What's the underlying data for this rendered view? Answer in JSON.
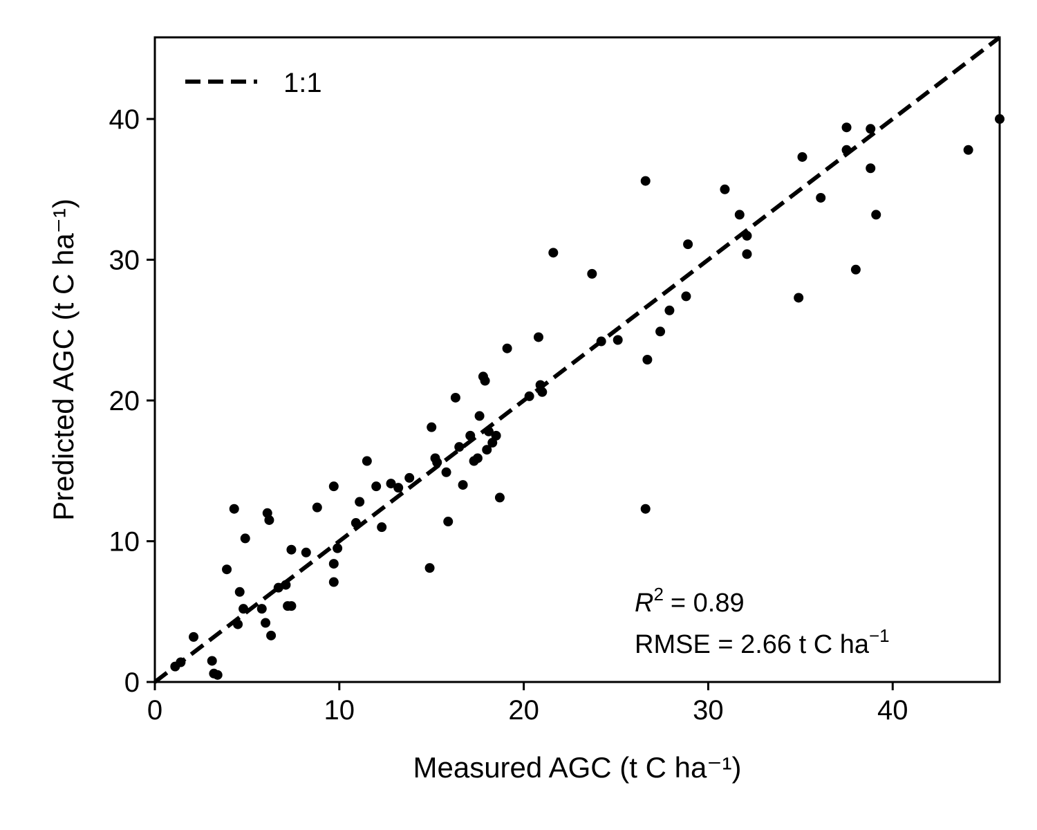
{
  "chart_data": {
    "type": "scatter",
    "xlabel": "Measured AGC (t C ha⁻¹)",
    "ylabel": "Predicted AGC (t C ha⁻¹)",
    "xlim": [
      0,
      45.8
    ],
    "ylim": [
      0,
      45.8
    ],
    "xticks": [
      0,
      10,
      20,
      30,
      40
    ],
    "yticks": [
      0,
      10,
      20,
      30,
      40
    ],
    "grid": false,
    "legend": {
      "position": "top-left",
      "entries": [
        {
          "label": "1:1",
          "style": "dashed",
          "color": "#000000"
        }
      ]
    },
    "reference_line": {
      "name": "1:1",
      "slope": 1,
      "intercept": 0
    },
    "annotations": {
      "r2_label": "R",
      "r2_exponent": "2",
      "r2_value": "= 0.89",
      "rmse_text": "RMSE = 2.66 t C ha",
      "rmse_exponent": "−1"
    },
    "points": [
      [
        1.1,
        1.1
      ],
      [
        1.4,
        1.4
      ],
      [
        2.1,
        3.2
      ],
      [
        3.1,
        1.5
      ],
      [
        3.2,
        0.6
      ],
      [
        3.4,
        0.5
      ],
      [
        3.9,
        8.0
      ],
      [
        4.3,
        12.3
      ],
      [
        4.5,
        4.1
      ],
      [
        4.6,
        6.4
      ],
      [
        4.8,
        5.2
      ],
      [
        4.9,
        10.2
      ],
      [
        5.8,
        5.2
      ],
      [
        6.0,
        4.2
      ],
      [
        6.1,
        12.0
      ],
      [
        6.2,
        11.5
      ],
      [
        6.3,
        3.3
      ],
      [
        6.7,
        6.7
      ],
      [
        7.1,
        6.9
      ],
      [
        7.2,
        5.4
      ],
      [
        7.4,
        5.4
      ],
      [
        7.4,
        9.4
      ],
      [
        8.2,
        9.2
      ],
      [
        8.8,
        12.4
      ],
      [
        9.7,
        8.4
      ],
      [
        9.7,
        7.1
      ],
      [
        9.7,
        13.9
      ],
      [
        9.9,
        9.5
      ],
      [
        10.9,
        11.3
      ],
      [
        11.1,
        12.8
      ],
      [
        11.5,
        15.7
      ],
      [
        12.0,
        13.9
      ],
      [
        12.3,
        11.0
      ],
      [
        12.8,
        14.1
      ],
      [
        13.2,
        13.8
      ],
      [
        13.8,
        14.5
      ],
      [
        14.9,
        8.1
      ],
      [
        15.0,
        18.1
      ],
      [
        15.2,
        15.9
      ],
      [
        15.3,
        15.6
      ],
      [
        15.8,
        14.9
      ],
      [
        15.9,
        11.4
      ],
      [
        16.3,
        20.2
      ],
      [
        16.5,
        16.7
      ],
      [
        16.7,
        14.0
      ],
      [
        17.1,
        17.5
      ],
      [
        17.3,
        15.7
      ],
      [
        17.5,
        15.9
      ],
      [
        17.6,
        18.9
      ],
      [
        17.8,
        21.7
      ],
      [
        17.9,
        21.4
      ],
      [
        18.0,
        16.5
      ],
      [
        18.1,
        17.8
      ],
      [
        18.3,
        17.0
      ],
      [
        18.5,
        17.5
      ],
      [
        18.7,
        13.1
      ],
      [
        19.1,
        23.7
      ],
      [
        20.3,
        20.3
      ],
      [
        20.8,
        24.5
      ],
      [
        20.9,
        21.1
      ],
      [
        21.0,
        20.6
      ],
      [
        21.6,
        30.5
      ],
      [
        23.7,
        29.0
      ],
      [
        24.2,
        24.2
      ],
      [
        25.1,
        24.3
      ],
      [
        26.6,
        35.6
      ],
      [
        26.6,
        12.3
      ],
      [
        26.7,
        22.9
      ],
      [
        27.4,
        24.9
      ],
      [
        27.9,
        26.4
      ],
      [
        28.8,
        27.4
      ],
      [
        28.9,
        31.1
      ],
      [
        30.9,
        35.0
      ],
      [
        31.7,
        33.2
      ],
      [
        32.1,
        31.7
      ],
      [
        32.1,
        30.4
      ],
      [
        34.9,
        27.3
      ],
      [
        35.1,
        37.3
      ],
      [
        36.1,
        34.4
      ],
      [
        37.5,
        39.4
      ],
      [
        37.5,
        37.8
      ],
      [
        38.0,
        29.3
      ],
      [
        38.8,
        39.3
      ],
      [
        38.8,
        36.5
      ],
      [
        39.1,
        33.2
      ],
      [
        44.1,
        37.8
      ],
      [
        45.8,
        40.0
      ]
    ]
  }
}
